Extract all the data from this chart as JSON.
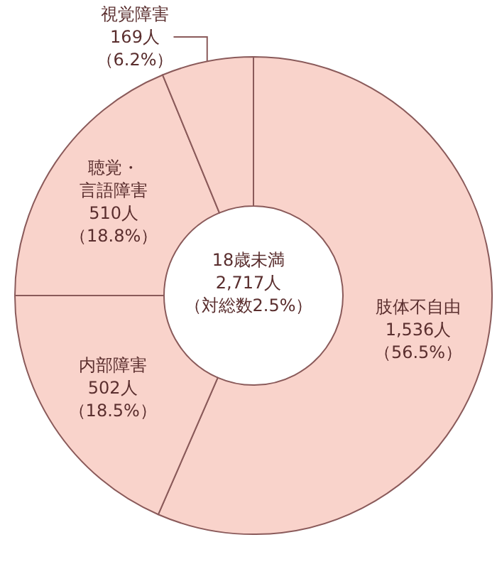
{
  "chart_data": {
    "type": "donut",
    "title": "18歳未満",
    "annotations": [
      "2,717人",
      "（対総数2.5%）"
    ],
    "categories": [
      "肢体不自由",
      "内部障害",
      "聴覚・言語障害",
      "視覚障害"
    ],
    "values": [
      1536,
      502,
      510,
      169
    ],
    "value_labels": [
      "1,536人（56.5%）",
      "502人（18.5%）",
      "510人（18.8%）",
      "169人（6.2%）"
    ],
    "colors": [
      "#f9d3cb",
      "#f9d3cb",
      "#f9d3cb",
      "#f9d3cb"
    ]
  }
}
